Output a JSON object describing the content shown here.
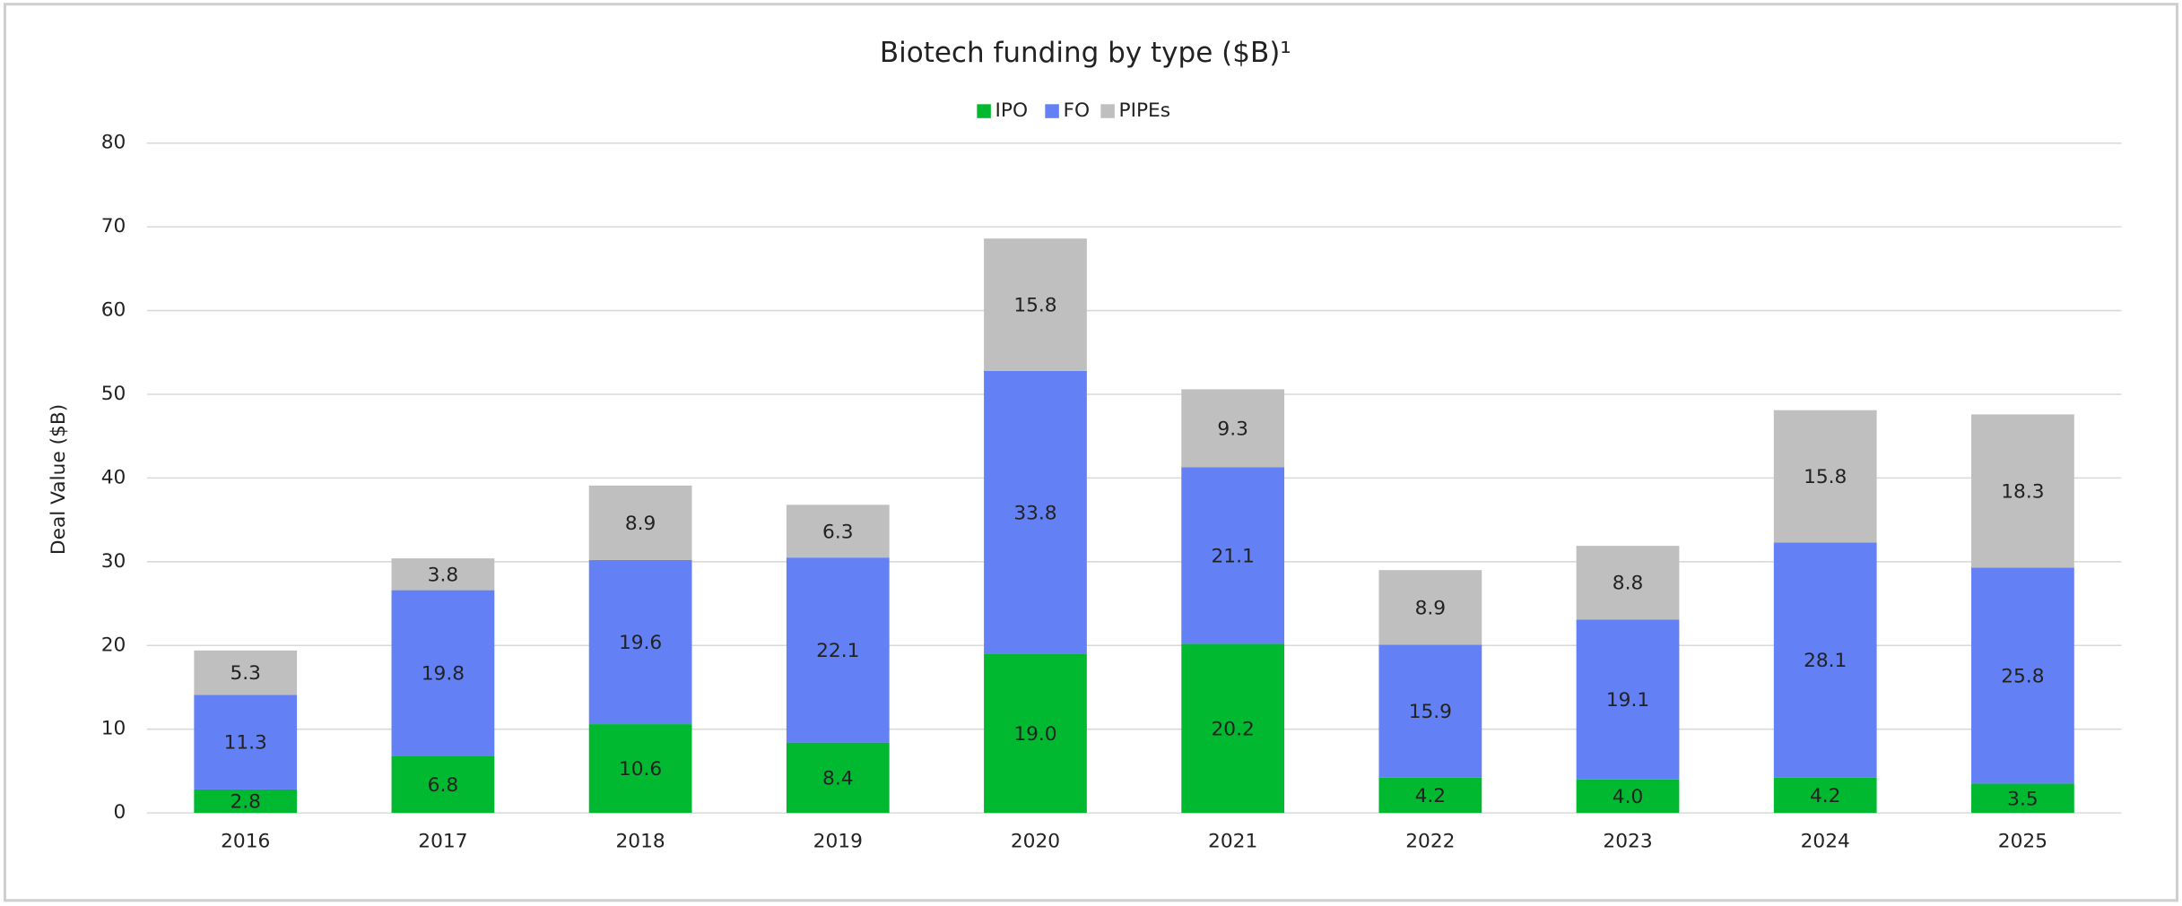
{
  "chart_data": {
    "type": "stacked_bar",
    "title": "Biotech funding by type ($B)¹",
    "y_label": "Deal Value ($B)",
    "categories": [
      "2016",
      "2017",
      "2018",
      "2019",
      "2020",
      "2021",
      "2022",
      "2023",
      "2024",
      "2025"
    ],
    "series": [
      {
        "name": "IPO",
        "color": "#00b930",
        "values": [
          2.8,
          6.8,
          10.6,
          8.4,
          19.0,
          20.2,
          4.2,
          4.0,
          4.2,
          3.5
        ],
        "value_labels": [
          "2.8",
          "6.8",
          "10.6",
          "8.4",
          "19.0",
          "20.2",
          "4.2",
          "4.0",
          "4.2",
          "3.5"
        ]
      },
      {
        "name": "FO",
        "color": "#6381f5",
        "values": [
          11.3,
          19.8,
          19.6,
          22.1,
          33.8,
          21.1,
          15.9,
          19.1,
          28.1,
          25.8
        ],
        "value_labels": [
          "11.3",
          "19.8",
          "19.6",
          "22.1",
          "33.8",
          "21.1",
          "15.9",
          "19.1",
          "28.1",
          "25.8"
        ]
      },
      {
        "name": "PIPEs",
        "color": "#bfbfbf",
        "values": [
          5.3,
          3.8,
          8.9,
          6.3,
          15.8,
          9.3,
          8.9,
          8.8,
          15.8,
          18.3
        ],
        "value_labels": [
          "5.3",
          "3.8",
          "8.9",
          "6.3",
          "15.8",
          "9.3",
          "8.9",
          "8.8",
          "15.8",
          "18.3"
        ]
      }
    ],
    "ylim": [
      0,
      80
    ],
    "yticks": [
      0,
      10,
      20,
      30,
      40,
      50,
      60,
      70,
      80
    ],
    "grid": true,
    "legend": "top"
  }
}
